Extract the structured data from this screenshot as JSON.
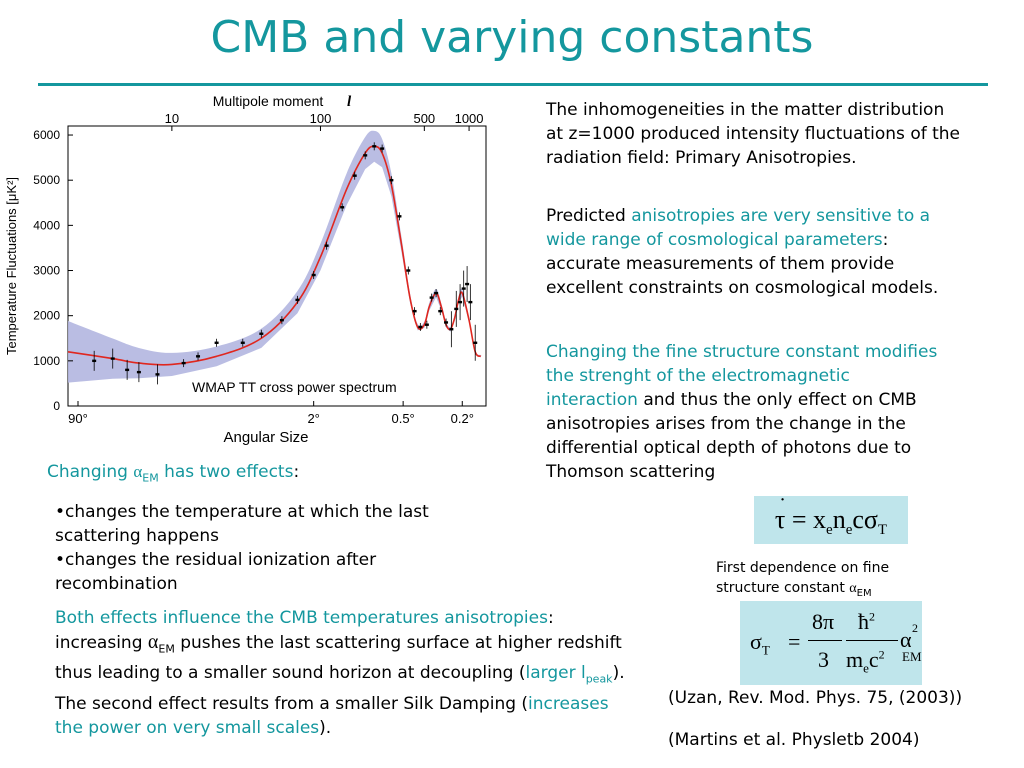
{
  "slide": {
    "title": "CMB and varying constants"
  },
  "chart_data": {
    "type": "line",
    "top_axis_label": "Multipole moment",
    "top_axis_symbol": "l",
    "top_ticks": [
      "10",
      "100",
      "500",
      "1000"
    ],
    "ylabel": "Temperature Fluctuations [μK²]",
    "yticks": [
      "0",
      "1000",
      "2000",
      "3000",
      "4000",
      "5000",
      "6000"
    ],
    "ylim": [
      0,
      6200
    ],
    "xlabel": "Angular Size",
    "bottom_ticks": [
      "90°",
      "2°",
      "0.5°",
      "0.2°"
    ],
    "legend": "WMAP TT cross power spectrum",
    "x": [
      2,
      4,
      6,
      10,
      20,
      40,
      70,
      100,
      150,
      200,
      230,
      260,
      300,
      350,
      400,
      450,
      500,
      540,
      600,
      650,
      700,
      750,
      800,
      850,
      900,
      1000,
      1100,
      1200
    ],
    "series": [
      {
        "values": [
          1200,
          1050,
          950,
          920,
          1100,
          1500,
          2300,
          3300,
          4800,
          5600,
          5750,
          5600,
          4900,
          3600,
          2400,
          1750,
          1800,
          2200,
          2500,
          2200,
          1800,
          1700,
          1950,
          2350,
          2500,
          1900,
          1200,
          1100
        ]
      }
    ],
    "points": [
      {
        "x": 3,
        "y": 1000
      },
      {
        "x": 4,
        "y": 1050
      },
      {
        "x": 5,
        "y": 800
      },
      {
        "x": 6,
        "y": 750
      },
      {
        "x": 8,
        "y": 700
      },
      {
        "x": 12,
        "y": 950
      },
      {
        "x": 15,
        "y": 1100
      },
      {
        "x": 20,
        "y": 1400
      },
      {
        "x": 30,
        "y": 1400
      },
      {
        "x": 40,
        "y": 1600
      },
      {
        "x": 55,
        "y": 1900
      },
      {
        "x": 70,
        "y": 2350
      },
      {
        "x": 90,
        "y": 2900
      },
      {
        "x": 110,
        "y": 3550
      },
      {
        "x": 140,
        "y": 4400
      },
      {
        "x": 170,
        "y": 5100
      },
      {
        "x": 200,
        "y": 5550
      },
      {
        "x": 230,
        "y": 5750
      },
      {
        "x": 260,
        "y": 5700
      },
      {
        "x": 300,
        "y": 5000
      },
      {
        "x": 340,
        "y": 4200
      },
      {
        "x": 390,
        "y": 3000
      },
      {
        "x": 430,
        "y": 2100
      },
      {
        "x": 470,
        "y": 1750
      },
      {
        "x": 520,
        "y": 1800
      },
      {
        "x": 560,
        "y": 2400
      },
      {
        "x": 600,
        "y": 2500
      },
      {
        "x": 640,
        "y": 2100
      },
      {
        "x": 700,
        "y": 1850
      },
      {
        "x": 760,
        "y": 1700
      },
      {
        "x": 820,
        "y": 2150
      },
      {
        "x": 870,
        "y": 2300
      },
      {
        "x": 920,
        "y": 2600
      },
      {
        "x": 970,
        "y": 2700
      },
      {
        "x": 1020,
        "y": 2300
      },
      {
        "x": 1100,
        "y": 1400
      }
    ]
  },
  "left": {
    "changing_prefix": "Changing ",
    "alpha": "α",
    "em_sub": "EM",
    "has_two_effects": " has two effects",
    "colon": ":",
    "bullet1": "•changes the temperature at which the last scattering happens",
    "bullet2": "•changes the residual ionization after recombination",
    "p_both": "Both effects influence the CMB temperatures anisotropies",
    "p_colon": ":",
    "p_increasing": "increasing ",
    "p_alpha": "α",
    "p_em": "EM",
    "p_pushes": " pushes the last scattering surface at higher redshift thus leading to a smaller sound horizon at decoupling (",
    "p_larger": "larger l",
    "p_peak": "peak",
    "p_second": "). The second effect results from a smaller Silk Damping (",
    "p_increases": "increases the power on very small scales",
    "p_end": ")."
  },
  "right": {
    "p1": "The inhomogeneities in the matter distribution at z=1000  produced intensity fluctuations  of the radiation field: Primary Anisotropies.",
    "p2_a": "Predicted ",
    "p2_b": "anisotropies are very sensitive to a wide range of cosmological parameters",
    "p2_c": ": accurate measurements of them provide excellent constraints on cosmological models.",
    "p3_a": "Changing the fine structure constant modifies the strenght of the electromagnetic interaction",
    "p3_b": " and thus the only effect on CMB anisotropies arises from the change in the differential optical depth of photons due to Thomson scattering",
    "eq1": {
      "tau": "τ",
      "eq": " = ",
      "x": "x",
      "e1": "e",
      "n": "n",
      "e2": "e",
      "c": "c",
      "sigma": "σ",
      "T": "T"
    },
    "note_a": "First dependence on fine structure constant ",
    "note_alpha": "α",
    "note_em": "EM",
    "eq2": {
      "sigma": "σ",
      "T": "T",
      "eq": "=",
      "num": "8π",
      "den": "3",
      "hbar": "ħ",
      "sq": "2",
      "me": "m",
      "e": "e",
      "c": "c",
      "sq2": "2",
      "alpha": "α",
      "sq3": "2",
      "em": "EM"
    },
    "ref1": "(Uzan, Rev. Mod. Phys. 75, (2003))",
    "ref2": "(Martins et al. Physletb 2004)"
  }
}
